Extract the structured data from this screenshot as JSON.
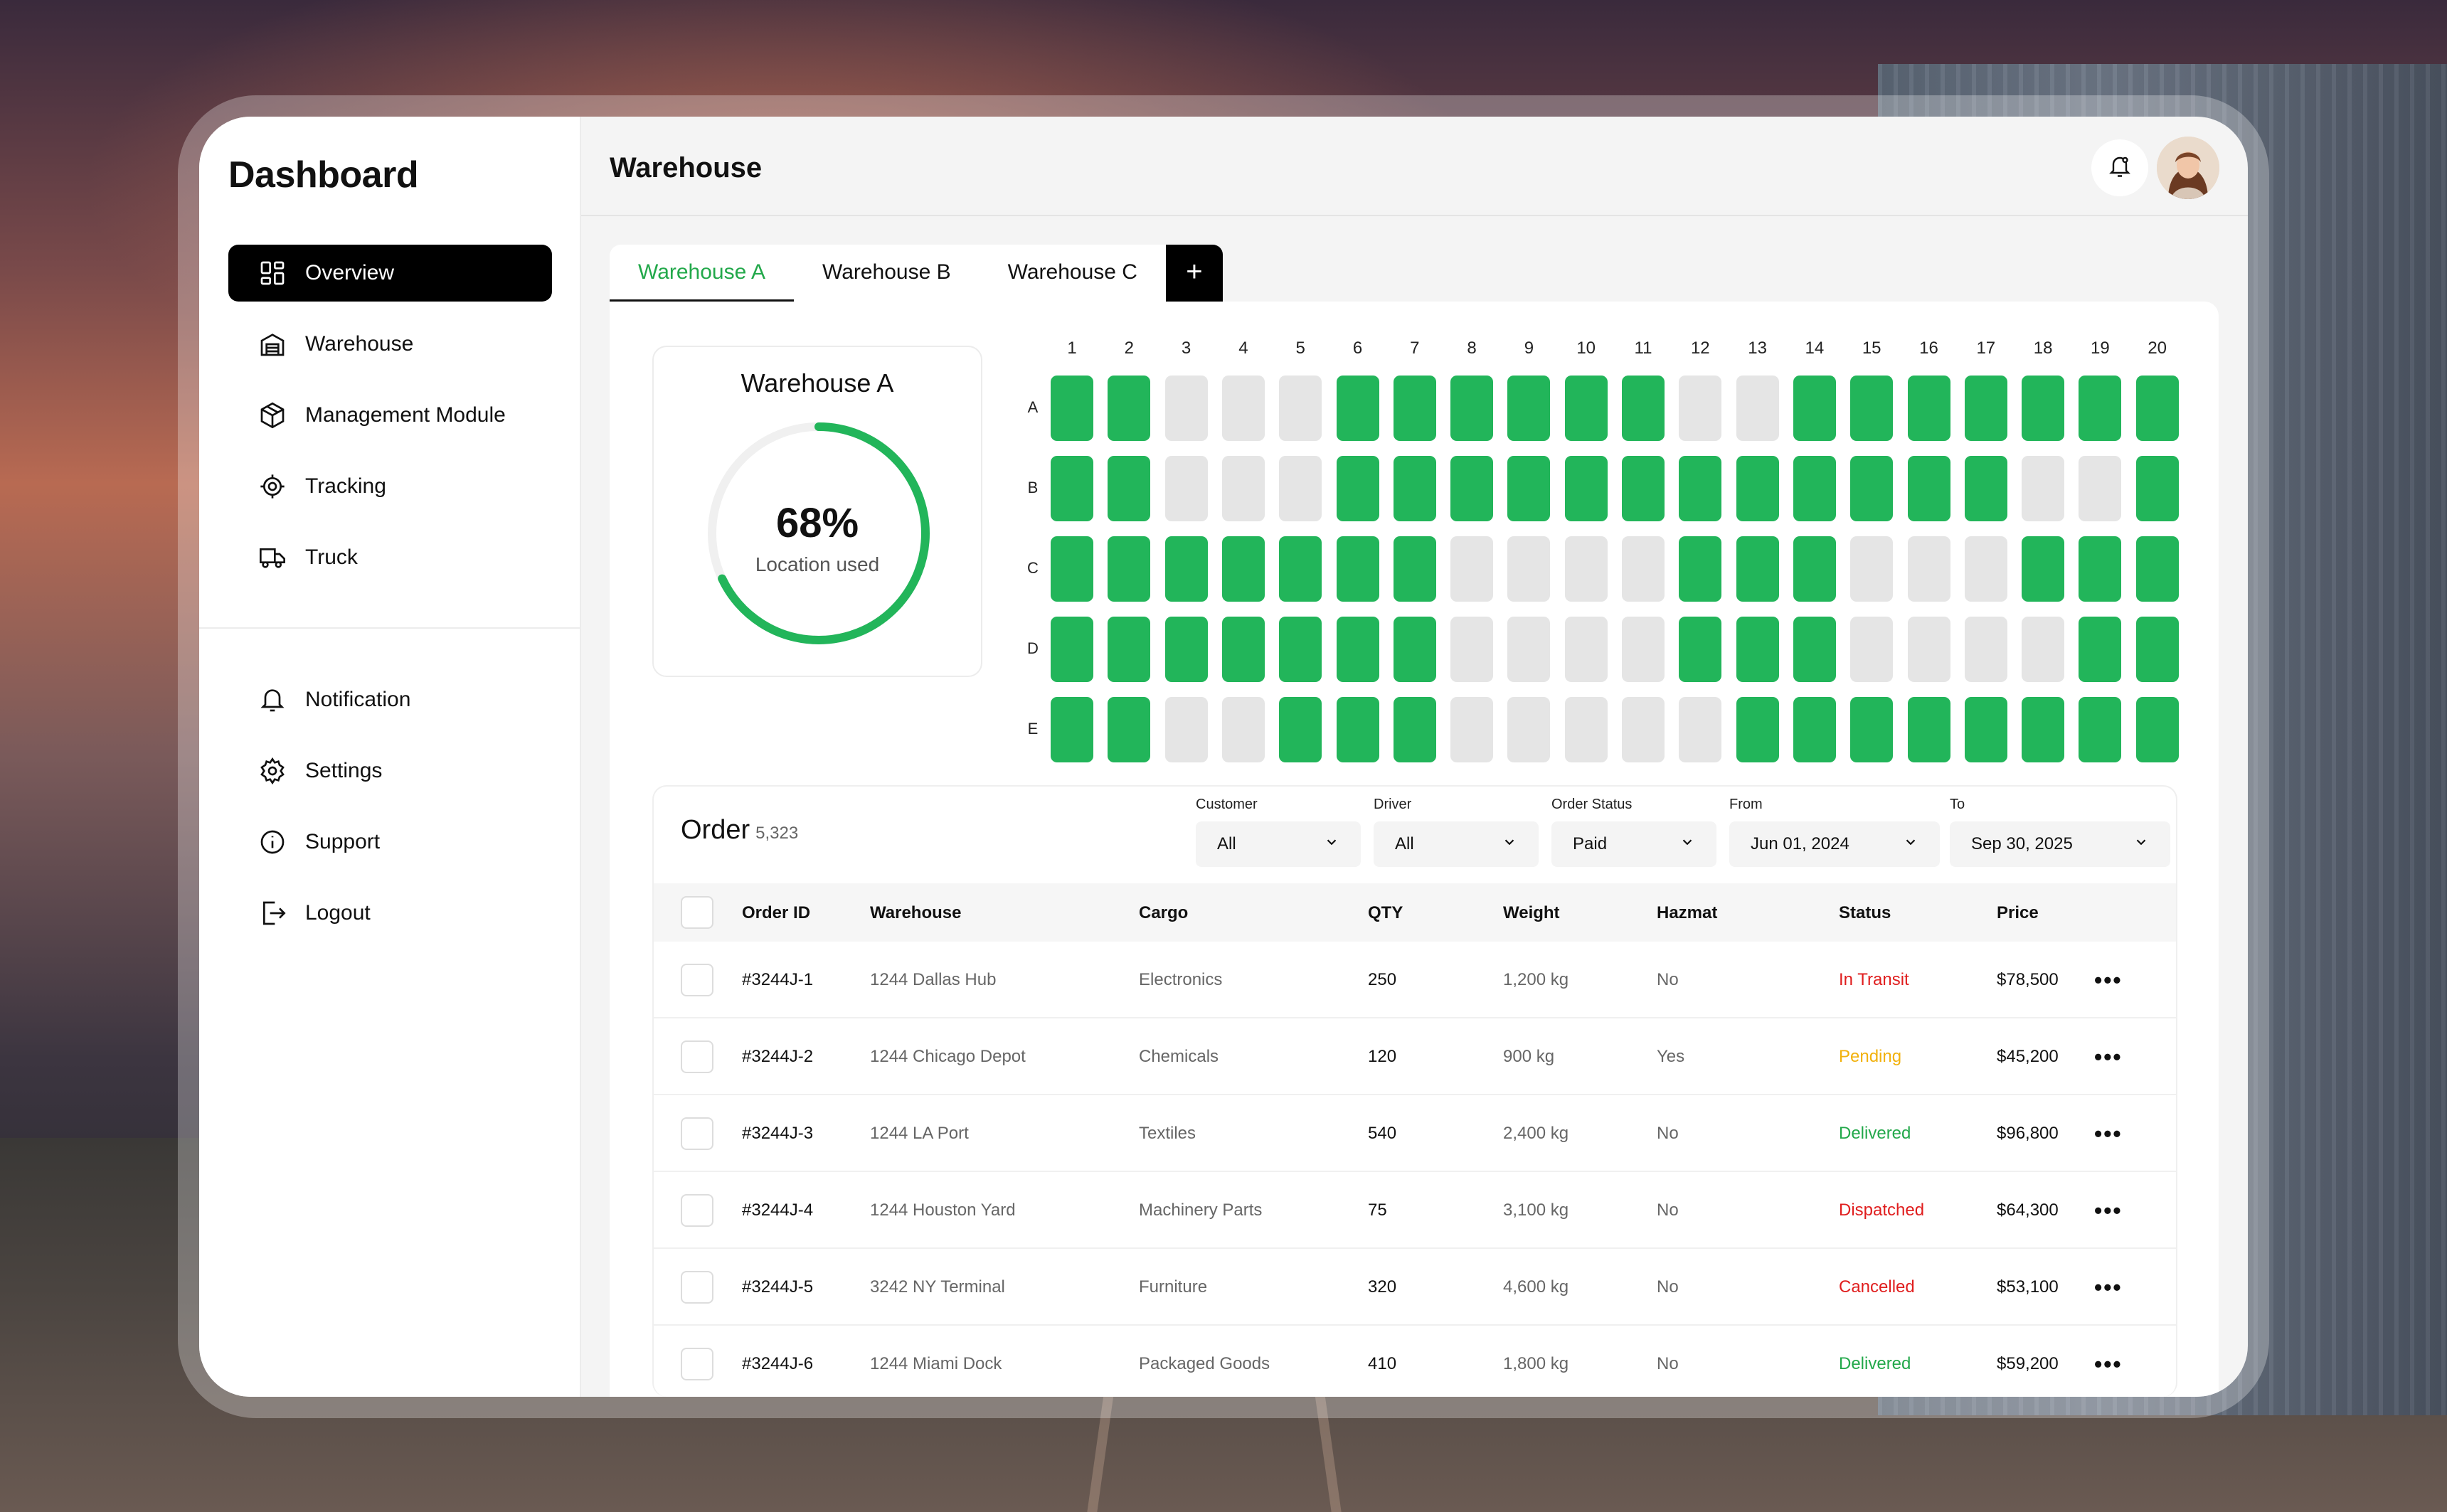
{
  "sidebar": {
    "title": "Dashboard",
    "nav": [
      {
        "label": "Overview",
        "icon": "grid-icon",
        "active": true
      },
      {
        "label": "Warehouse",
        "icon": "warehouse-icon"
      },
      {
        "label": "Management Module",
        "icon": "box-icon"
      },
      {
        "label": "Tracking",
        "icon": "target-icon"
      },
      {
        "label": "Truck",
        "icon": "truck-icon"
      }
    ],
    "nav2": [
      {
        "label": "Notification",
        "icon": "bell-icon"
      },
      {
        "label": "Settings",
        "icon": "gear-icon"
      },
      {
        "label": "Support",
        "icon": "info-icon"
      },
      {
        "label": "Logout",
        "icon": "logout-icon"
      }
    ]
  },
  "header": {
    "title": "Warehouse"
  },
  "tabs": [
    "Warehouse A",
    "Warehouse B",
    "Warehouse C"
  ],
  "tab_add": "+",
  "usage": {
    "title": "Warehouse A",
    "percent_label": "68%",
    "percent": 68,
    "subtitle": "Location used"
  },
  "grid": {
    "columns": [
      "1",
      "2",
      "3",
      "4",
      "5",
      "6",
      "7",
      "8",
      "9",
      "10",
      "11",
      "12",
      "13",
      "14",
      "15",
      "16",
      "17",
      "18",
      "19",
      "20"
    ],
    "rows": [
      {
        "label": "A",
        "slots": [
          1,
          1,
          0,
          0,
          0,
          1,
          1,
          1,
          1,
          1,
          1,
          0,
          0,
          1,
          1,
          1,
          1,
          1,
          1,
          1
        ]
      },
      {
        "label": "B",
        "slots": [
          1,
          1,
          0,
          0,
          0,
          1,
          1,
          1,
          1,
          1,
          1,
          1,
          1,
          1,
          1,
          1,
          1,
          0,
          0,
          1
        ]
      },
      {
        "label": "C",
        "slots": [
          1,
          1,
          1,
          1,
          1,
          1,
          1,
          0,
          0,
          0,
          0,
          1,
          1,
          1,
          0,
          0,
          0,
          1,
          1,
          1
        ]
      },
      {
        "label": "D",
        "slots": [
          1,
          1,
          1,
          1,
          1,
          1,
          1,
          0,
          0,
          0,
          0,
          1,
          1,
          1,
          0,
          0,
          0,
          0,
          1,
          1
        ]
      },
      {
        "label": "E",
        "slots": [
          1,
          1,
          0,
          0,
          1,
          1,
          1,
          0,
          0,
          0,
          0,
          0,
          1,
          1,
          1,
          1,
          1,
          1,
          1,
          1
        ]
      }
    ]
  },
  "orders": {
    "title": "Order",
    "count": "5,323",
    "filters": {
      "customer": {
        "label": "Customer",
        "value": "All"
      },
      "driver": {
        "label": "Driver",
        "value": "All"
      },
      "status": {
        "label": "Order Status",
        "value": "Paid"
      },
      "from": {
        "label": "From",
        "value": "Jun 01, 2024"
      },
      "to": {
        "label": "To",
        "value": "Sep 30, 2025"
      }
    },
    "columns": {
      "id": "Order ID",
      "warehouse": "Warehouse",
      "cargo": "Cargo",
      "qty": "QTY",
      "weight": "Weight",
      "hazmat": "Hazmat",
      "status": "Status",
      "price": "Price"
    },
    "rows": [
      {
        "id": "#3244J-1",
        "warehouse": "1244 Dallas Hub",
        "cargo": "Electronics",
        "qty": "250",
        "weight": "1,200 kg",
        "hazmat": "No",
        "status": "In Transit",
        "status_class": "st-transit",
        "price": "$78,500"
      },
      {
        "id": "#3244J-2",
        "warehouse": "1244 Chicago Depot",
        "cargo": "Chemicals",
        "qty": "120",
        "weight": "900 kg",
        "hazmat": "Yes",
        "status": "Pending",
        "status_class": "st-pending",
        "price": "$45,200"
      },
      {
        "id": "#3244J-3",
        "warehouse": "1244 LA Port",
        "cargo": "Textiles",
        "qty": "540",
        "weight": "2,400 kg",
        "hazmat": "No",
        "status": "Delivered",
        "status_class": "st-delivered",
        "price": "$96,800"
      },
      {
        "id": "#3244J-4",
        "warehouse": "1244 Houston Yard",
        "cargo": "Machinery Parts",
        "qty": "75",
        "weight": "3,100 kg",
        "hazmat": "No",
        "status": "Dispatched",
        "status_class": "st-dispatched",
        "price": "$64,300"
      },
      {
        "id": "#3244J-5",
        "warehouse": "3242 NY Terminal",
        "cargo": "Furniture",
        "qty": "320",
        "weight": "4,600 kg",
        "hazmat": "No",
        "status": "Cancelled",
        "status_class": "st-cancelled",
        "price": "$53,100"
      },
      {
        "id": "#3244J-6",
        "warehouse": "1244 Miami Dock",
        "cargo": "Packaged Goods",
        "qty": "410",
        "weight": "1,800 kg",
        "hazmat": "No",
        "status": "Delivered",
        "status_class": "st-delivered",
        "price": "$59,200"
      }
    ],
    "row_menu": "•••"
  },
  "colors": {
    "accent": "#22b55a",
    "empty_slot": "#e5e5e5",
    "active_nav": "#000000"
  }
}
